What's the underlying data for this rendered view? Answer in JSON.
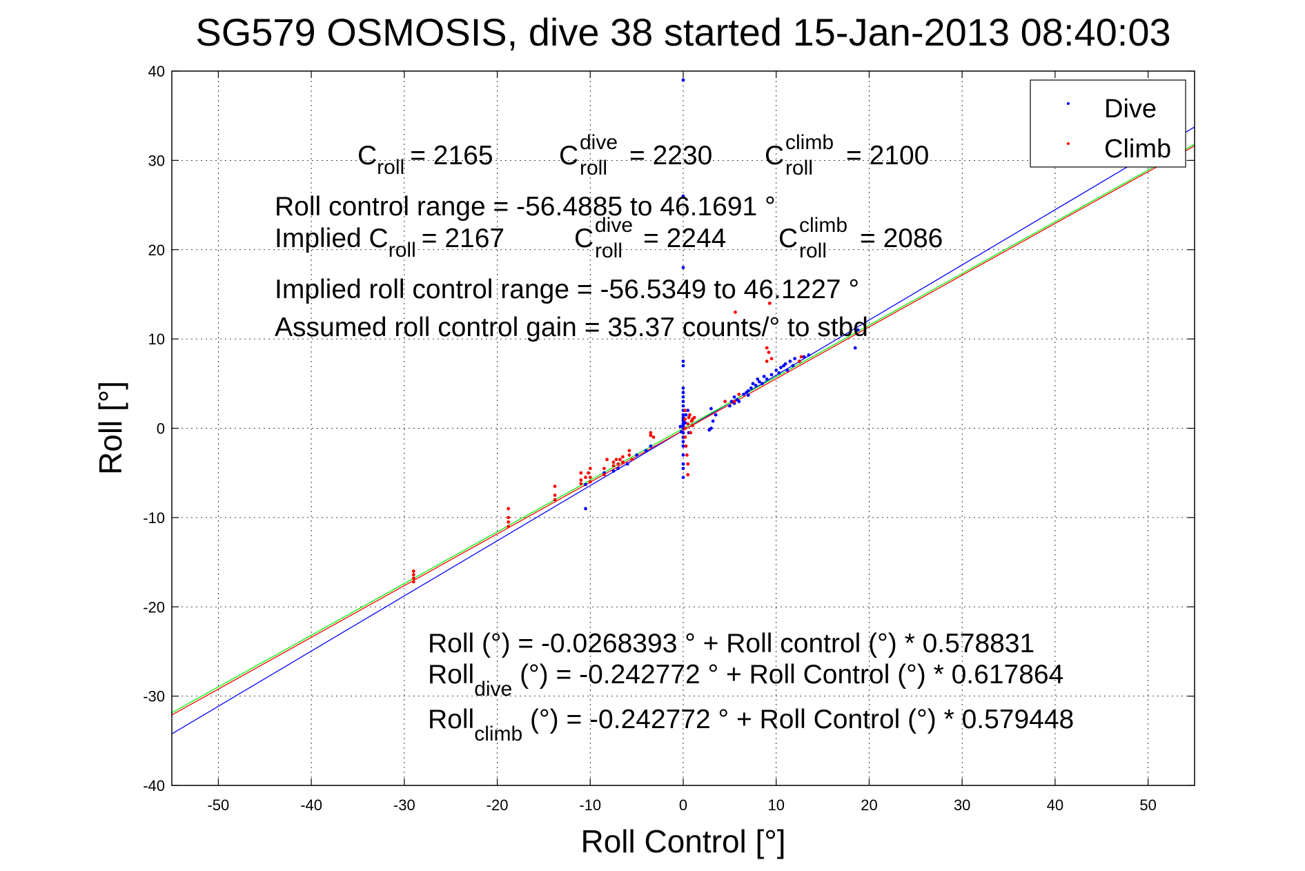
{
  "chart_data": {
    "type": "scatter",
    "title": "SG579 OSMOSIS, dive 38 started 15-Jan-2013 08:40:03",
    "xlabel": "Roll Control [°]",
    "ylabel": "Roll [°]",
    "xlim": [
      -55,
      55
    ],
    "ylim": [
      -40,
      40
    ],
    "xticks": [
      -50,
      -40,
      -30,
      -20,
      -10,
      0,
      10,
      20,
      30,
      40,
      50
    ],
    "yticks": [
      -40,
      -30,
      -20,
      -10,
      0,
      10,
      20,
      30,
      40
    ],
    "grid": true,
    "legend": {
      "position": "top-right",
      "entries": [
        {
          "label": "Dive",
          "color": "#0000ff"
        },
        {
          "label": "Climb",
          "color": "#ff0000"
        }
      ]
    },
    "series": [
      {
        "name": "Dive",
        "color": "#0000ff",
        "points": [
          [
            0,
            39
          ],
          [
            0,
            26
          ],
          [
            0,
            18
          ],
          [
            0,
            7.5
          ],
          [
            0,
            7
          ],
          [
            0,
            4.5
          ],
          [
            0,
            4
          ],
          [
            0,
            3.5
          ],
          [
            0,
            3
          ],
          [
            0,
            2.5
          ],
          [
            0,
            2
          ],
          [
            0,
            1.5
          ],
          [
            0,
            1.2
          ],
          [
            0,
            1
          ],
          [
            0,
            0.8
          ],
          [
            0,
            0.5
          ],
          [
            0,
            0.3
          ],
          [
            0,
            0
          ],
          [
            0,
            -0.5
          ],
          [
            0,
            -1
          ],
          [
            0,
            -1.5
          ],
          [
            0,
            -2
          ],
          [
            0,
            -3
          ],
          [
            0,
            -4
          ],
          [
            0,
            -4.5
          ],
          [
            0,
            -5.5
          ],
          [
            0.2,
            0.6
          ],
          [
            -0.2,
            -0.4
          ],
          [
            0.5,
            2
          ],
          [
            0.6,
            -0.5
          ],
          [
            0.3,
            1.5
          ],
          [
            -0.3,
            0.2
          ],
          [
            3,
            0
          ],
          [
            3.2,
            0.8
          ],
          [
            2.8,
            -0.2
          ],
          [
            3.5,
            1.5
          ],
          [
            3,
            2.2
          ],
          [
            5,
            2.5
          ],
          [
            5.2,
            3
          ],
          [
            5.5,
            3.5
          ],
          [
            5.5,
            2.8
          ],
          [
            5.8,
            3.2
          ],
          [
            6,
            3
          ],
          [
            6.5,
            3.8
          ],
          [
            6.8,
            4
          ],
          [
            7,
            4.2
          ],
          [
            7,
            3.7
          ],
          [
            7.3,
            4.5
          ],
          [
            7.5,
            5
          ],
          [
            7.8,
            4.8
          ],
          [
            8,
            5.5
          ],
          [
            8.2,
            5.2
          ],
          [
            8.5,
            5
          ],
          [
            8.7,
            5.8
          ],
          [
            9,
            5.5
          ],
          [
            9.5,
            6
          ],
          [
            10,
            6.5
          ],
          [
            10.3,
            6.2
          ],
          [
            10.5,
            6.8
          ],
          [
            10.8,
            7
          ],
          [
            11,
            7.2
          ],
          [
            11.2,
            6.5
          ],
          [
            11.5,
            7.5
          ],
          [
            11.8,
            7
          ],
          [
            12,
            7.8
          ],
          [
            12.5,
            7.5
          ],
          [
            13,
            8
          ],
          [
            13.5,
            8.2
          ],
          [
            18.5,
            9
          ],
          [
            18.8,
            11
          ],
          [
            -6,
            -4
          ],
          [
            -6.5,
            -3.8
          ],
          [
            -7,
            -4.5
          ],
          [
            -7.5,
            -4.8
          ],
          [
            -8.5,
            -5
          ],
          [
            -10,
            -6
          ],
          [
            -10.5,
            -6.3
          ],
          [
            -10.5,
            -9
          ],
          [
            -5,
            -3
          ],
          [
            -4,
            -2.5
          ],
          [
            -3.5,
            -2
          ]
        ]
      },
      {
        "name": "Climb",
        "color": "#ff0000",
        "points": [
          [
            -29,
            -16
          ],
          [
            -29,
            -16.4
          ],
          [
            -29,
            -16.8
          ],
          [
            -29,
            -17.2
          ],
          [
            -18.8,
            -10
          ],
          [
            -18.8,
            -10.5
          ],
          [
            -18.8,
            -11
          ],
          [
            -18.8,
            -9
          ],
          [
            -13.8,
            -6.5
          ],
          [
            -13.8,
            -7.5
          ],
          [
            -13.8,
            -8
          ],
          [
            -11,
            -5
          ],
          [
            -11,
            -5.8
          ],
          [
            -11,
            -6.2
          ],
          [
            -10.5,
            -5.5
          ],
          [
            -10.2,
            -5
          ],
          [
            -10,
            -4.5
          ],
          [
            -10,
            -5.5
          ],
          [
            -10,
            -6
          ],
          [
            -8.5,
            -4.5
          ],
          [
            -8.5,
            -5.2
          ],
          [
            -8.2,
            -3.5
          ],
          [
            -7.5,
            -3.8
          ],
          [
            -7.5,
            -4.2
          ],
          [
            -7.2,
            -3.5
          ],
          [
            -7,
            -4
          ],
          [
            -6.8,
            -3.5
          ],
          [
            -6.5,
            -3.2
          ],
          [
            -6.5,
            -3.8
          ],
          [
            -5.8,
            -3
          ],
          [
            -5.8,
            -2.5
          ],
          [
            -5.5,
            -3.5
          ],
          [
            -3.5,
            -0.5
          ],
          [
            -3.2,
            -1
          ],
          [
            -3.5,
            -0.8
          ],
          [
            0.2,
            -1
          ],
          [
            0.2,
            0
          ],
          [
            0.2,
            1
          ],
          [
            0.2,
            2
          ],
          [
            0.3,
            -2
          ],
          [
            0.4,
            -3
          ],
          [
            0.5,
            -4
          ],
          [
            0.5,
            -5.2
          ],
          [
            0.5,
            0.5
          ],
          [
            0.6,
            1.2
          ],
          [
            0.7,
            1.5
          ],
          [
            0.8,
            -0.5
          ],
          [
            1,
            1
          ],
          [
            1,
            0.3
          ],
          [
            1.2,
            1.2
          ],
          [
            0.9,
            0.8
          ],
          [
            4.5,
            3
          ],
          [
            5.5,
            3
          ],
          [
            6,
            3.8
          ],
          [
            5.6,
            13
          ],
          [
            9,
            9
          ],
          [
            9.2,
            8.5
          ],
          [
            9.3,
            14
          ],
          [
            9,
            7.5
          ],
          [
            9.5,
            7.8
          ],
          [
            12.5,
            7.5
          ],
          [
            12.7,
            8
          ]
        ]
      }
    ],
    "fit_lines": [
      {
        "name": "Dive fit",
        "color": "#0000ff",
        "intercept": -0.242772,
        "slope": 0.617864
      },
      {
        "name": "Climb fit",
        "color": "#ff0000",
        "intercept": -0.242772,
        "slope": 0.579448
      },
      {
        "name": "Overall fit",
        "color": "#00ff00",
        "intercept": -0.0268393,
        "slope": 0.578831
      }
    ],
    "annotations": {
      "c_roll": {
        "prefix": "C",
        "sub": "roll",
        "value": "= 2165"
      },
      "c_roll_dive": {
        "prefix": "C",
        "sup": "dive",
        "sub": "roll",
        "value": "= 2230"
      },
      "c_roll_climb": {
        "prefix": "C",
        "sup": "climb",
        "sub": "roll",
        "value": "= 2100"
      },
      "roll_control_range": "Roll control range = -56.4885 to 46.1691 °",
      "implied_c_roll": {
        "prefix": "Implied C",
        "sub": "roll",
        "value": "= 2167"
      },
      "implied_c_roll_dive": {
        "prefix": "C",
        "sup": "dive",
        "sub": "roll",
        "value": "= 2244"
      },
      "implied_c_roll_climb": {
        "prefix": "C",
        "sup": "climb",
        "sub": "roll",
        "value": "= 2086"
      },
      "implied_roll_control_range": "Implied roll control range = -56.5349 to 46.1227 °",
      "assumed_gain": "Assumed roll control gain = 35.37 counts/° to stbd",
      "fit_overall": "Roll (°) = -0.0268393 ° + Roll control (°) * 0.578831",
      "fit_dive": {
        "prefix": "Roll",
        "sub": "dive",
        "rest": " (°) = -0.242772 ° + Roll Control (°) * 0.617864"
      },
      "fit_climb": {
        "prefix": "Roll",
        "sub": "climb",
        "rest": " (°) = -0.242772 ° + Roll Control (°) * 0.579448"
      }
    }
  }
}
